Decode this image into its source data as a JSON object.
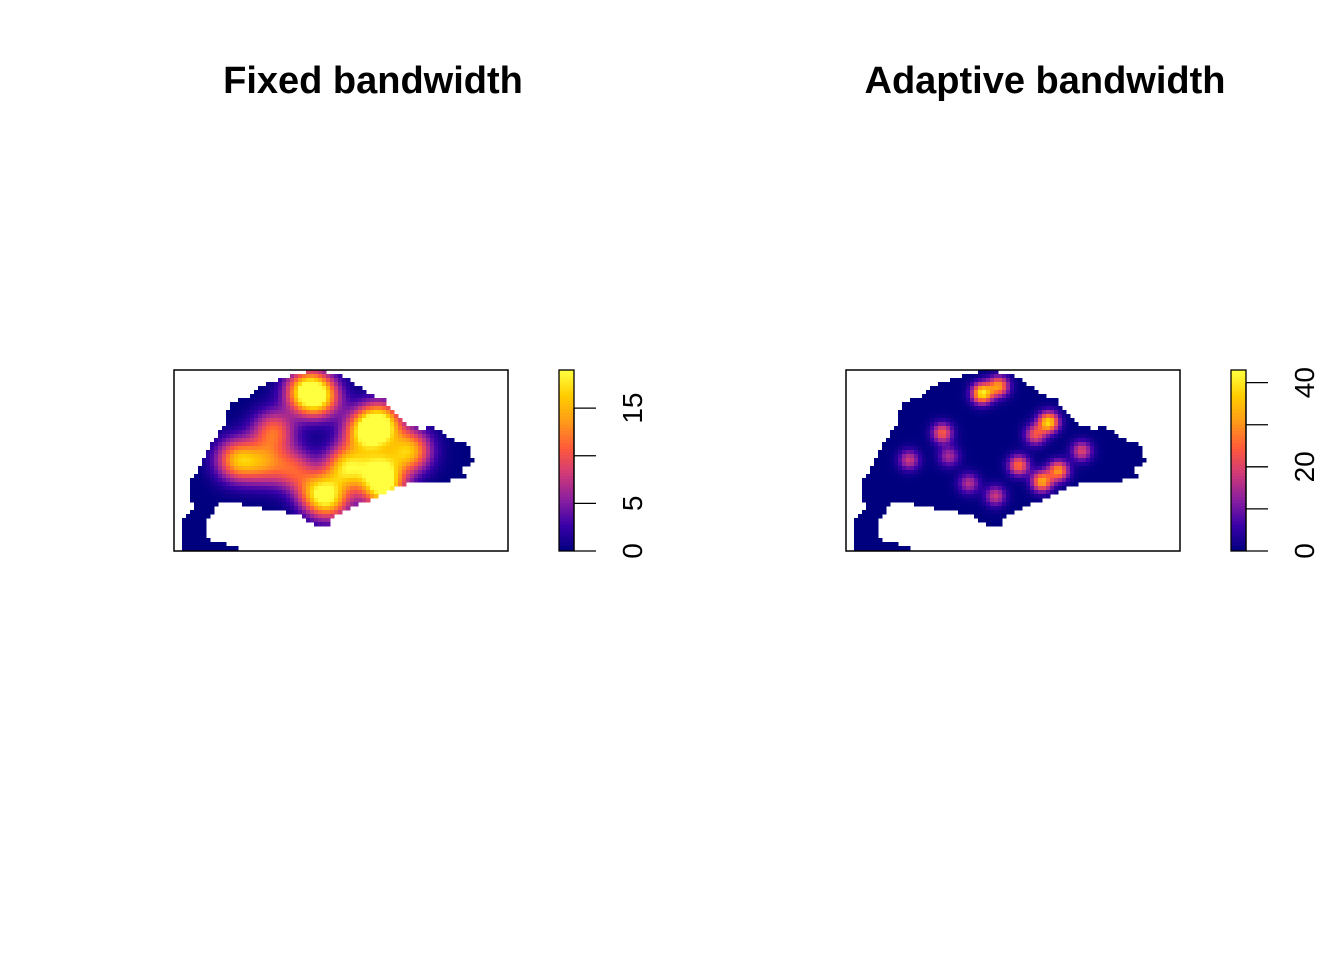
{
  "chart_data": [
    {
      "type": "heatmap",
      "title": "Fixed bandwidth",
      "colorbar": {
        "range": [
          0,
          19
        ],
        "ticks": [
          0,
          5,
          10,
          15
        ],
        "tick_labels": [
          "0",
          "5",
          "",
          "15"
        ],
        "colors": [
          "#00007f",
          "#3a00a8",
          "#8a1fa0",
          "#d03a78",
          "#ff5a3a",
          "#ff9a1a",
          "#ffcc00",
          "#ffff40"
        ]
      },
      "hotspots": [
        {
          "x": 0.4,
          "y": 0.12,
          "v": 17
        },
        {
          "x": 0.44,
          "y": 0.15,
          "v": 12
        },
        {
          "x": 0.62,
          "y": 0.3,
          "v": 19
        },
        {
          "x": 0.57,
          "y": 0.35,
          "v": 13
        },
        {
          "x": 0.3,
          "y": 0.34,
          "v": 11
        },
        {
          "x": 0.19,
          "y": 0.5,
          "v": 14
        },
        {
          "x": 0.27,
          "y": 0.52,
          "v": 10
        },
        {
          "x": 0.36,
          "y": 0.55,
          "v": 9
        },
        {
          "x": 0.52,
          "y": 0.54,
          "v": 16
        },
        {
          "x": 0.62,
          "y": 0.55,
          "v": 13
        },
        {
          "x": 0.71,
          "y": 0.45,
          "v": 15
        },
        {
          "x": 0.63,
          "y": 0.66,
          "v": 16
        },
        {
          "x": 0.43,
          "y": 0.68,
          "v": 11
        },
        {
          "x": 0.47,
          "y": 0.72,
          "v": 12
        }
      ]
    },
    {
      "type": "heatmap",
      "title": "Adaptive bandwidth",
      "colorbar": {
        "range": [
          0,
          43
        ],
        "ticks": [
          0,
          10,
          20,
          30,
          40
        ],
        "tick_labels": [
          "0",
          "",
          "20",
          "",
          "40"
        ],
        "colors": [
          "#00007f",
          "#3a00a8",
          "#8a1fa0",
          "#d03a78",
          "#ff5a3a",
          "#ff9a1a",
          "#ffcc00",
          "#ffff40"
        ]
      },
      "hotspots": [
        {
          "x": 0.41,
          "y": 0.13,
          "v": 40
        },
        {
          "x": 0.46,
          "y": 0.09,
          "v": 30
        },
        {
          "x": 0.61,
          "y": 0.29,
          "v": 38
        },
        {
          "x": 0.57,
          "y": 0.36,
          "v": 22
        },
        {
          "x": 0.29,
          "y": 0.35,
          "v": 24
        },
        {
          "x": 0.19,
          "y": 0.5,
          "v": 18
        },
        {
          "x": 0.31,
          "y": 0.48,
          "v": 15
        },
        {
          "x": 0.52,
          "y": 0.53,
          "v": 26
        },
        {
          "x": 0.64,
          "y": 0.56,
          "v": 30
        },
        {
          "x": 0.71,
          "y": 0.45,
          "v": 20
        },
        {
          "x": 0.59,
          "y": 0.62,
          "v": 32
        },
        {
          "x": 0.45,
          "y": 0.7,
          "v": 18
        },
        {
          "x": 0.37,
          "y": 0.63,
          "v": 16
        }
      ]
    }
  ]
}
